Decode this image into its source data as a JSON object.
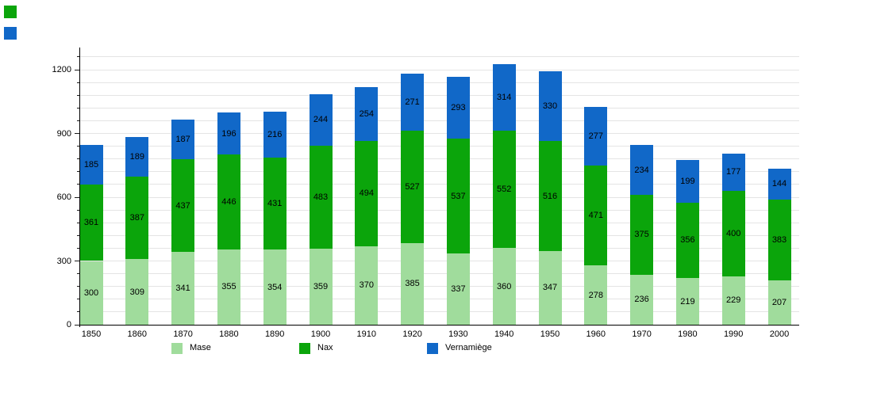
{
  "chart_data": {
    "type": "bar",
    "stacked": true,
    "title": "",
    "xlabel": "",
    "ylabel": "",
    "categories": [
      "1850",
      "1860",
      "1870",
      "1880",
      "1890",
      "1900",
      "1910",
      "1920",
      "1930",
      "1940",
      "1950",
      "1960",
      "1970",
      "1980",
      "1990",
      "2000"
    ],
    "series": [
      {
        "name": "Mase",
        "color": "#a0dc9c",
        "values": [
          300,
          309,
          341,
          355,
          354,
          359,
          370,
          385,
          337,
          360,
          347,
          278,
          236,
          219,
          229,
          207
        ]
      },
      {
        "name": "Nax",
        "color": "#0ba50b",
        "values": [
          361,
          387,
          437,
          446,
          431,
          483,
          494,
          527,
          537,
          552,
          516,
          471,
          375,
          356,
          400,
          383
        ]
      },
      {
        "name": "Vernamiège",
        "color": "#1168c8",
        "values": [
          185,
          189,
          187,
          196,
          216,
          244,
          254,
          271,
          293,
          314,
          330,
          277,
          234,
          199,
          177,
          144
        ]
      }
    ],
    "ylim": [
      0,
      1300
    ],
    "yticks": [
      0,
      300,
      600,
      900,
      1200
    ],
    "minor_tick_step": 60,
    "grid": true,
    "grid_color": "#e4e4e4",
    "legend_position": "bottom",
    "bar_value_labels": true
  },
  "decor": {
    "corner_swatch_green": "#0ba50b",
    "corner_swatch_blue": "#1168c8"
  }
}
